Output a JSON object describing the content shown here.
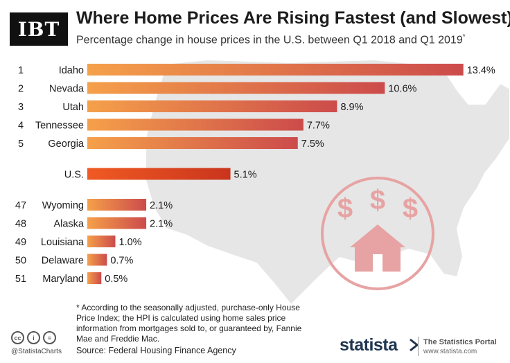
{
  "header": {
    "logo_text": "IBT",
    "title": "Where Home Prices Are Rising Fastest (and Slowest)",
    "subtitle": "Percentage change in house prices in the U.S. between Q1 2018 and Q1 2019",
    "subtitle_mark": "*"
  },
  "chart_data": {
    "type": "bar",
    "orientation": "horizontal",
    "title": "Where Home Prices Are Rising Fastest (and Slowest)",
    "unit": "%",
    "groups": [
      {
        "name": "top",
        "rows": [
          {
            "rank": "1",
            "category": "Idaho",
            "value": 13.4,
            "label": "13.4%"
          },
          {
            "rank": "2",
            "category": "Nevada",
            "value": 10.6,
            "label": "10.6%"
          },
          {
            "rank": "3",
            "category": "Utah",
            "value": 8.9,
            "label": "8.9%"
          },
          {
            "rank": "4",
            "category": "Tennessee",
            "value": 7.7,
            "label": "7.7%"
          },
          {
            "rank": "5",
            "category": "Georgia",
            "value": 7.5,
            "label": "7.5%"
          }
        ]
      },
      {
        "name": "national",
        "rows": [
          {
            "rank": "",
            "category": "U.S.",
            "value": 5.1,
            "label": "5.1%"
          }
        ]
      },
      {
        "name": "bottom",
        "rows": [
          {
            "rank": "47",
            "category": "Wyoming",
            "value": 2.1,
            "label": "2.1%"
          },
          {
            "rank": "48",
            "category": "Alaska",
            "value": 2.1,
            "label": "2.1%"
          },
          {
            "rank": "49",
            "category": "Louisiana",
            "value": 1.0,
            "label": "1.0%"
          },
          {
            "rank": "50",
            "category": "Delaware",
            "value": 0.7,
            "label": "0.7%"
          },
          {
            "rank": "51",
            "category": "Maryland",
            "value": 0.5,
            "label": "0.5%"
          }
        ]
      }
    ],
    "colors": {
      "bar_start": "#f5a04a",
      "bar_end": "#cc4b4b",
      "us_start": "#f05a23",
      "us_end": "#c9351d"
    }
  },
  "badge": {
    "dollar_signs": [
      "$",
      "$",
      "$"
    ],
    "color": "#e7a3a3",
    "icon": "house-with-dollars-icon"
  },
  "footer": {
    "footnote": "* According to the seasonally adjusted, purchase-only House Price Index; the HPI is calculated using home sales price information from mortgages sold to, or guaranteed by, Fannie Mae and Freddie Mac.",
    "source": "Source: Federal Housing Finance Agency",
    "cc_labels": [
      "cc",
      "i",
      "="
    ],
    "handle": "@StatistaCharts",
    "statista_brand": "statista",
    "portal_name": "The Statistics Portal",
    "portal_url": "www.statista.com"
  }
}
